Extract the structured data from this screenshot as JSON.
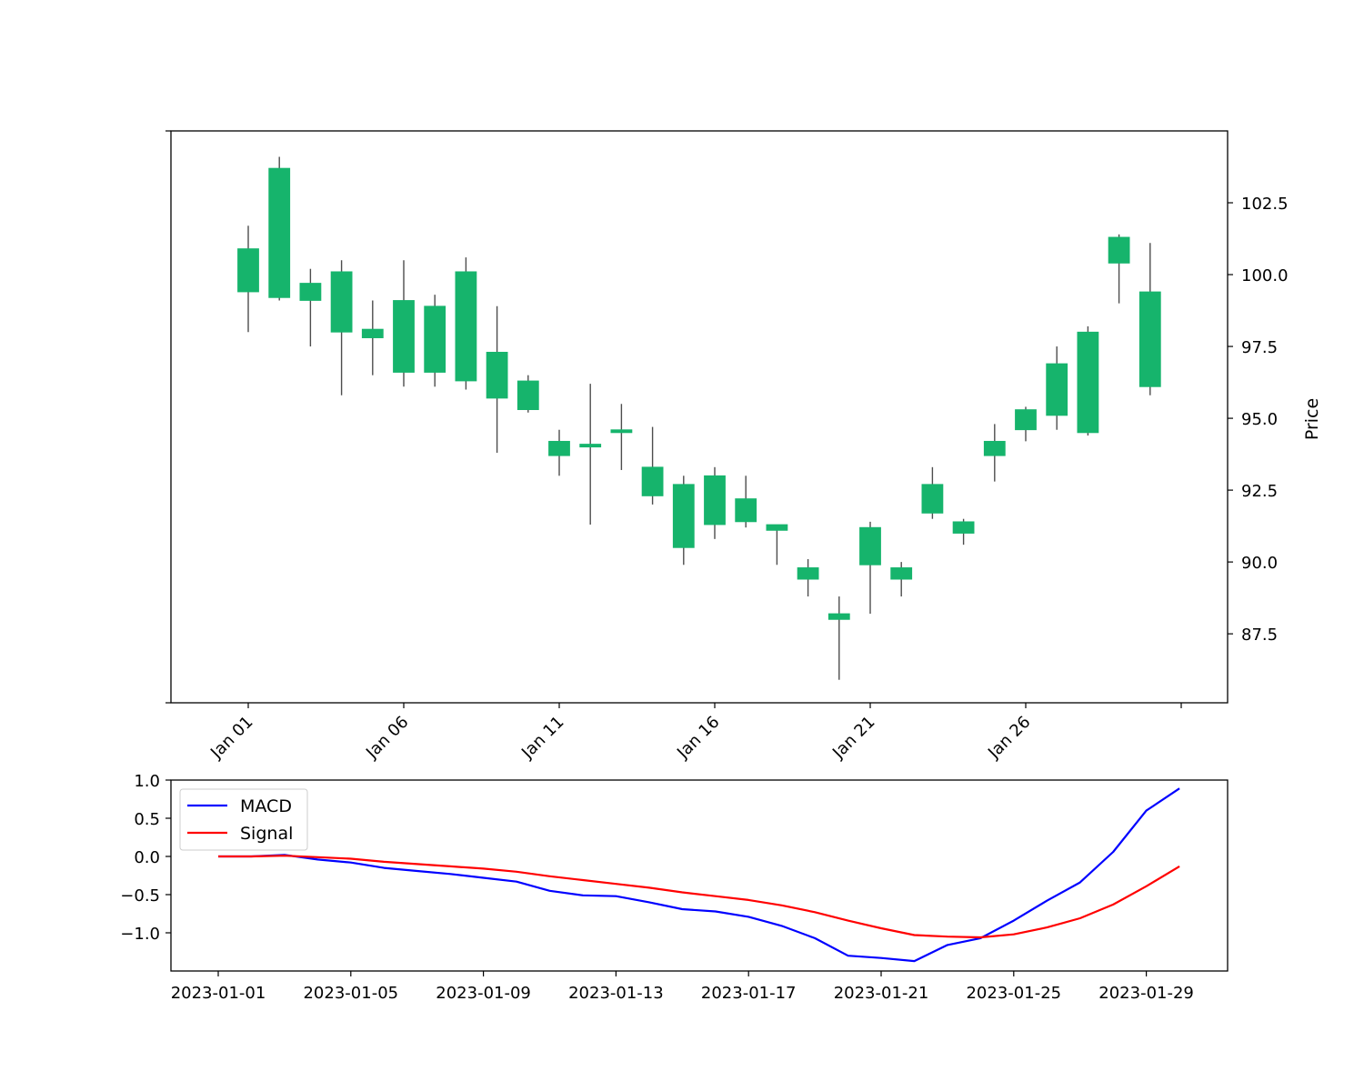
{
  "colors": {
    "up": "#16b46c",
    "down": "#ff4444",
    "wick": "#4d4d4d",
    "macd": "#0000ff",
    "signal": "#ff0000"
  },
  "chart_data": [
    {
      "type": "candlestick",
      "ylabel": "Price",
      "ylim": [
        85.1,
        105.0
      ],
      "yticks": [
        "87.5",
        "90.0",
        "92.5",
        "95.0",
        "97.5",
        "100.0",
        "102.5"
      ],
      "yaxis_side": "right",
      "xticks": [
        "Jan 01",
        "Jan 06",
        "Jan 11",
        "Jan 16",
        "Jan 21",
        "Jan 26"
      ],
      "grid": false,
      "candles": [
        {
          "date": "2023-01-01",
          "open": 99.4,
          "high": 101.7,
          "low": 98.0,
          "close": 100.9
        },
        {
          "date": "2023-01-02",
          "open": 99.2,
          "high": 104.1,
          "low": 99.1,
          "close": 103.7
        },
        {
          "date": "2023-01-03",
          "open": 99.1,
          "high": 100.2,
          "low": 97.5,
          "close": 99.7
        },
        {
          "date": "2023-01-04",
          "open": 98.0,
          "high": 100.5,
          "low": 95.8,
          "close": 100.1
        },
        {
          "date": "2023-01-05",
          "open": 97.8,
          "high": 99.1,
          "low": 96.5,
          "close": 98.1
        },
        {
          "date": "2023-01-06",
          "open": 96.6,
          "high": 100.5,
          "low": 96.1,
          "close": 99.1
        },
        {
          "date": "2023-01-07",
          "open": 96.6,
          "high": 99.3,
          "low": 96.1,
          "close": 98.9
        },
        {
          "date": "2023-01-08",
          "open": 96.3,
          "high": 100.6,
          "low": 96.0,
          "close": 100.1
        },
        {
          "date": "2023-01-09",
          "open": 95.7,
          "high": 98.9,
          "low": 93.8,
          "close": 97.3
        },
        {
          "date": "2023-01-10",
          "open": 95.3,
          "high": 96.5,
          "low": 95.2,
          "close": 96.3
        },
        {
          "date": "2023-01-11",
          "open": 93.7,
          "high": 94.6,
          "low": 93.0,
          "close": 94.2
        },
        {
          "date": "2023-01-12",
          "open": 94.0,
          "high": 96.2,
          "low": 91.3,
          "close": 94.1
        },
        {
          "date": "2023-01-13",
          "open": 94.5,
          "high": 95.5,
          "low": 93.2,
          "close": 94.6
        },
        {
          "date": "2023-01-14",
          "open": 92.3,
          "high": 94.7,
          "low": 92.0,
          "close": 93.3
        },
        {
          "date": "2023-01-15",
          "open": 90.5,
          "high": 93.0,
          "low": 89.9,
          "close": 92.7
        },
        {
          "date": "2023-01-16",
          "open": 91.3,
          "high": 93.3,
          "low": 90.8,
          "close": 93.0
        },
        {
          "date": "2023-01-17",
          "open": 91.4,
          "high": 93.0,
          "low": 91.2,
          "close": 92.2
        },
        {
          "date": "2023-01-18",
          "open": 91.1,
          "high": 91.3,
          "low": 89.9,
          "close": 91.3
        },
        {
          "date": "2023-01-19",
          "open": 89.4,
          "high": 90.1,
          "low": 88.8,
          "close": 89.8
        },
        {
          "date": "2023-01-20",
          "open": 88.0,
          "high": 88.8,
          "low": 85.9,
          "close": 88.2
        },
        {
          "date": "2023-01-21",
          "open": 89.9,
          "high": 91.4,
          "low": 88.2,
          "close": 91.2
        },
        {
          "date": "2023-01-22",
          "open": 89.4,
          "high": 90.0,
          "low": 88.8,
          "close": 89.8
        },
        {
          "date": "2023-01-23",
          "open": 91.7,
          "high": 93.3,
          "low": 91.5,
          "close": 92.7
        },
        {
          "date": "2023-01-24",
          "open": 91.0,
          "high": 91.5,
          "low": 90.6,
          "close": 91.4
        },
        {
          "date": "2023-01-25",
          "open": 93.7,
          "high": 94.8,
          "low": 92.8,
          "close": 94.2
        },
        {
          "date": "2023-01-26",
          "open": 94.6,
          "high": 95.4,
          "low": 94.2,
          "close": 95.3
        },
        {
          "date": "2023-01-27",
          "open": 95.1,
          "high": 97.5,
          "low": 94.6,
          "close": 96.9
        },
        {
          "date": "2023-01-28",
          "open": 94.5,
          "high": 98.2,
          "low": 94.4,
          "close": 98.0
        },
        {
          "date": "2023-01-29",
          "open": 100.4,
          "high": 101.4,
          "low": 99.0,
          "close": 101.3
        },
        {
          "date": "2023-01-30",
          "open": 96.1,
          "high": 101.1,
          "low": 95.8,
          "close": 99.4
        }
      ]
    },
    {
      "type": "line",
      "ylim": [
        -1.5,
        1.0
      ],
      "yticks": [
        "1.0",
        "0.5",
        "0.0",
        "−0.5",
        "−1.0"
      ],
      "xticks": [
        "2023-01-01",
        "2023-01-05",
        "2023-01-09",
        "2023-01-13",
        "2023-01-17",
        "2023-01-21",
        "2023-01-25",
        "2023-01-29"
      ],
      "legend_position": "upper-left",
      "grid": false,
      "x": [
        "2023-01-01",
        "2023-01-02",
        "2023-01-03",
        "2023-01-04",
        "2023-01-05",
        "2023-01-06",
        "2023-01-07",
        "2023-01-08",
        "2023-01-09",
        "2023-01-10",
        "2023-01-11",
        "2023-01-12",
        "2023-01-13",
        "2023-01-14",
        "2023-01-15",
        "2023-01-16",
        "2023-01-17",
        "2023-01-18",
        "2023-01-19",
        "2023-01-20",
        "2023-01-21",
        "2023-01-22",
        "2023-01-23",
        "2023-01-24",
        "2023-01-25",
        "2023-01-26",
        "2023-01-27",
        "2023-01-28",
        "2023-01-29",
        "2023-01-30"
      ],
      "series": [
        {
          "name": "MACD",
          "color": "#0000ff",
          "values": [
            0.0,
            0.0,
            0.02,
            -0.04,
            -0.08,
            -0.15,
            -0.19,
            -0.23,
            -0.28,
            -0.33,
            -0.45,
            -0.51,
            -0.52,
            -0.6,
            -0.69,
            -0.72,
            -0.79,
            -0.91,
            -1.07,
            -1.3,
            -1.33,
            -1.37,
            -1.16,
            -1.07,
            -0.84,
            -0.58,
            -0.34,
            0.06,
            0.6,
            0.89
          ]
        },
        {
          "name": "Signal",
          "color": "#ff0000",
          "values": [
            0.0,
            0.0,
            0.01,
            -0.01,
            -0.03,
            -0.07,
            -0.1,
            -0.13,
            -0.16,
            -0.2,
            -0.26,
            -0.31,
            -0.36,
            -0.41,
            -0.47,
            -0.52,
            -0.57,
            -0.64,
            -0.73,
            -0.84,
            -0.94,
            -1.03,
            -1.05,
            -1.06,
            -1.02,
            -0.93,
            -0.81,
            -0.63,
            -0.39,
            -0.13
          ]
        }
      ]
    }
  ]
}
